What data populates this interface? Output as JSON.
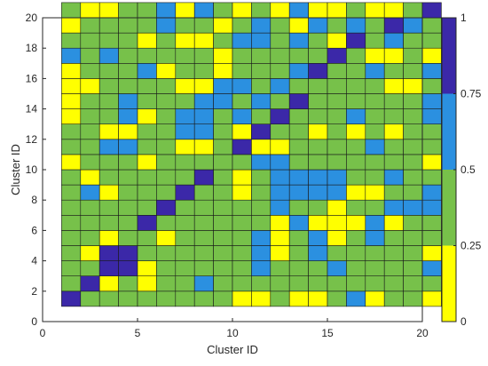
{
  "chart_data": {
    "type": "heatmap",
    "xlabel": "Cluster ID",
    "ylabel": "Cluster ID",
    "xlim": [
      0,
      20
    ],
    "ylim": [
      0,
      20
    ],
    "xticks": [
      "0",
      "5",
      "10",
      "15",
      "20"
    ],
    "yticks": [
      "0",
      "2",
      "4",
      "6",
      "8",
      "10",
      "12",
      "14",
      "16",
      "18",
      "20"
    ],
    "x": [
      1,
      2,
      3,
      4,
      5,
      6,
      7,
      8,
      9,
      10,
      11,
      12,
      13,
      14,
      15,
      16,
      17,
      18,
      19,
      20
    ],
    "y": [
      1,
      2,
      3,
      4,
      5,
      6,
      7,
      8,
      9,
      10,
      11,
      12,
      13,
      14,
      15,
      16,
      17,
      18,
      19,
      20
    ],
    "z": [
      [
        1,
        0.5,
        0.5,
        0.5,
        0.5,
        0.5,
        0.5,
        0.5,
        0.5,
        0.25,
        0.25,
        0.5,
        0.25,
        0.25,
        0.5,
        0.75,
        0.25,
        0.5,
        0.5,
        0.25
      ],
      [
        0.5,
        1,
        0.25,
        0.5,
        0.25,
        0.5,
        0.5,
        0.75,
        0.5,
        0.5,
        0.5,
        0.5,
        0.5,
        0.5,
        0.5,
        0.5,
        0.5,
        0.5,
        0.5,
        0.5
      ],
      [
        0.5,
        0.5,
        1,
        1,
        0.25,
        0.5,
        0.5,
        0.5,
        0.5,
        0.5,
        0.75,
        0.5,
        0.5,
        0.5,
        0.75,
        0.5,
        0.5,
        0.5,
        0.5,
        0.75
      ],
      [
        0.5,
        0.25,
        1,
        1,
        0.5,
        0.5,
        0.5,
        0.5,
        0.5,
        0.5,
        0.75,
        0.25,
        0.5,
        0.75,
        0.5,
        0.5,
        0.5,
        0.5,
        0.5,
        0.25
      ],
      [
        0.5,
        0.5,
        0.25,
        0.5,
        0.5,
        0.25,
        0.5,
        0.5,
        0.5,
        0.5,
        0.75,
        0.25,
        0.5,
        0.75,
        0.25,
        0.5,
        0.75,
        0.5,
        0.5,
        0.5
      ],
      [
        0.5,
        0.5,
        0.5,
        0.5,
        1,
        0.5,
        0.5,
        0.5,
        0.5,
        0.5,
        0.5,
        0.25,
        0.75,
        0.25,
        0.25,
        0.25,
        0.75,
        0.25,
        0.5,
        0.5
      ],
      [
        0.5,
        0.5,
        0.5,
        0.5,
        0.5,
        1,
        0.5,
        0.5,
        0.5,
        0.5,
        0.5,
        0.75,
        0.5,
        0.5,
        0.25,
        0.5,
        0.5,
        0.75,
        0.75,
        0.75
      ],
      [
        0.5,
        0.75,
        0.25,
        0.5,
        0.5,
        0.5,
        1,
        0.5,
        0.5,
        0.25,
        0.5,
        0.75,
        0.75,
        0.75,
        0.75,
        0.25,
        0.25,
        0.5,
        0.5,
        0.75
      ],
      [
        0.5,
        0.25,
        0.5,
        0.5,
        0.5,
        0.5,
        0.5,
        1,
        0.5,
        0.25,
        0.5,
        0.75,
        0.75,
        0.75,
        0.75,
        0.5,
        0.5,
        0.75,
        0.5,
        0.5
      ],
      [
        0.25,
        0.5,
        0.5,
        0.5,
        0.25,
        0.5,
        0.5,
        0.5,
        0.5,
        0.5,
        0.75,
        0.75,
        0.5,
        0.5,
        0.5,
        0.5,
        0.5,
        0.5,
        0.5,
        0.25
      ],
      [
        0.5,
        0.5,
        0.75,
        0.75,
        0.5,
        0.5,
        0.25,
        0.25,
        0.5,
        1,
        0.25,
        0.25,
        0.5,
        0.5,
        0.5,
        0.5,
        0.75,
        0.5,
        0.5,
        0.5
      ],
      [
        0.5,
        0.5,
        0.25,
        0.25,
        0.5,
        0.5,
        0.75,
        0.75,
        0.5,
        0.25,
        1,
        0.5,
        0.5,
        0.25,
        0.5,
        0.25,
        0.5,
        0.25,
        0.5,
        0.5
      ],
      [
        0.25,
        0.5,
        0.5,
        0.75,
        0.25,
        0.5,
        0.75,
        0.75,
        0.5,
        0.75,
        0.5,
        1,
        0.5,
        0.5,
        0.5,
        0.75,
        0.5,
        0.5,
        0.5,
        0.75
      ],
      [
        0.25,
        0.5,
        0.5,
        0.75,
        0.5,
        0.5,
        0.5,
        0.75,
        0.75,
        0.5,
        0.75,
        0.5,
        1,
        0.5,
        0.5,
        0.5,
        0.5,
        0.5,
        0.5,
        0.75
      ],
      [
        0.25,
        0.25,
        0.5,
        0.5,
        0.5,
        0.5,
        0.25,
        0.25,
        0.75,
        0.75,
        0.5,
        0.75,
        0.5,
        0.5,
        0.5,
        0.5,
        0.5,
        0.25,
        0.25,
        0.5
      ],
      [
        0.25,
        0.5,
        0.5,
        0.5,
        0.75,
        0.25,
        0.5,
        0.5,
        0.25,
        0.5,
        0.5,
        0.5,
        0.75,
        1,
        0.5,
        0.5,
        0.75,
        0.5,
        0.5,
        0.75
      ],
      [
        0.75,
        0.5,
        0.75,
        0.5,
        0.5,
        0.5,
        0.5,
        0.5,
        0.25,
        0.5,
        0.5,
        0.5,
        0.5,
        0.5,
        1,
        0.5,
        0.25,
        0.25,
        0.5,
        0.25
      ],
      [
        0.5,
        0.5,
        0.5,
        0.5,
        0.25,
        0.5,
        0.25,
        0.25,
        0.5,
        0.75,
        0.75,
        0.5,
        0.75,
        0.5,
        0.25,
        1,
        0.5,
        0.75,
        0.5,
        0.5
      ],
      [
        0.25,
        0.5,
        0.5,
        0.5,
        0.5,
        0.75,
        0.5,
        0.5,
        0.25,
        0.5,
        0.75,
        0.5,
        0.25,
        0.75,
        0.5,
        0.75,
        0.5,
        1,
        0.75,
        0.5
      ],
      [
        0.5,
        0.25,
        0.25,
        0.5,
        0.5,
        0.75,
        0.25,
        0.75,
        0.5,
        0.25,
        0.5,
        0.25,
        0.75,
        0.25,
        0.25,
        0.5,
        0.25,
        0.25,
        0.5,
        1
      ]
    ],
    "colorbar": {
      "range": [
        0,
        1
      ],
      "ticks": [
        "0",
        "0.25",
        "0.5",
        "0.75",
        "1"
      ],
      "colors": [
        "#ffff00",
        "#77c14a",
        "#2b90e0",
        "#3b28a8"
      ]
    },
    "grid": false
  }
}
